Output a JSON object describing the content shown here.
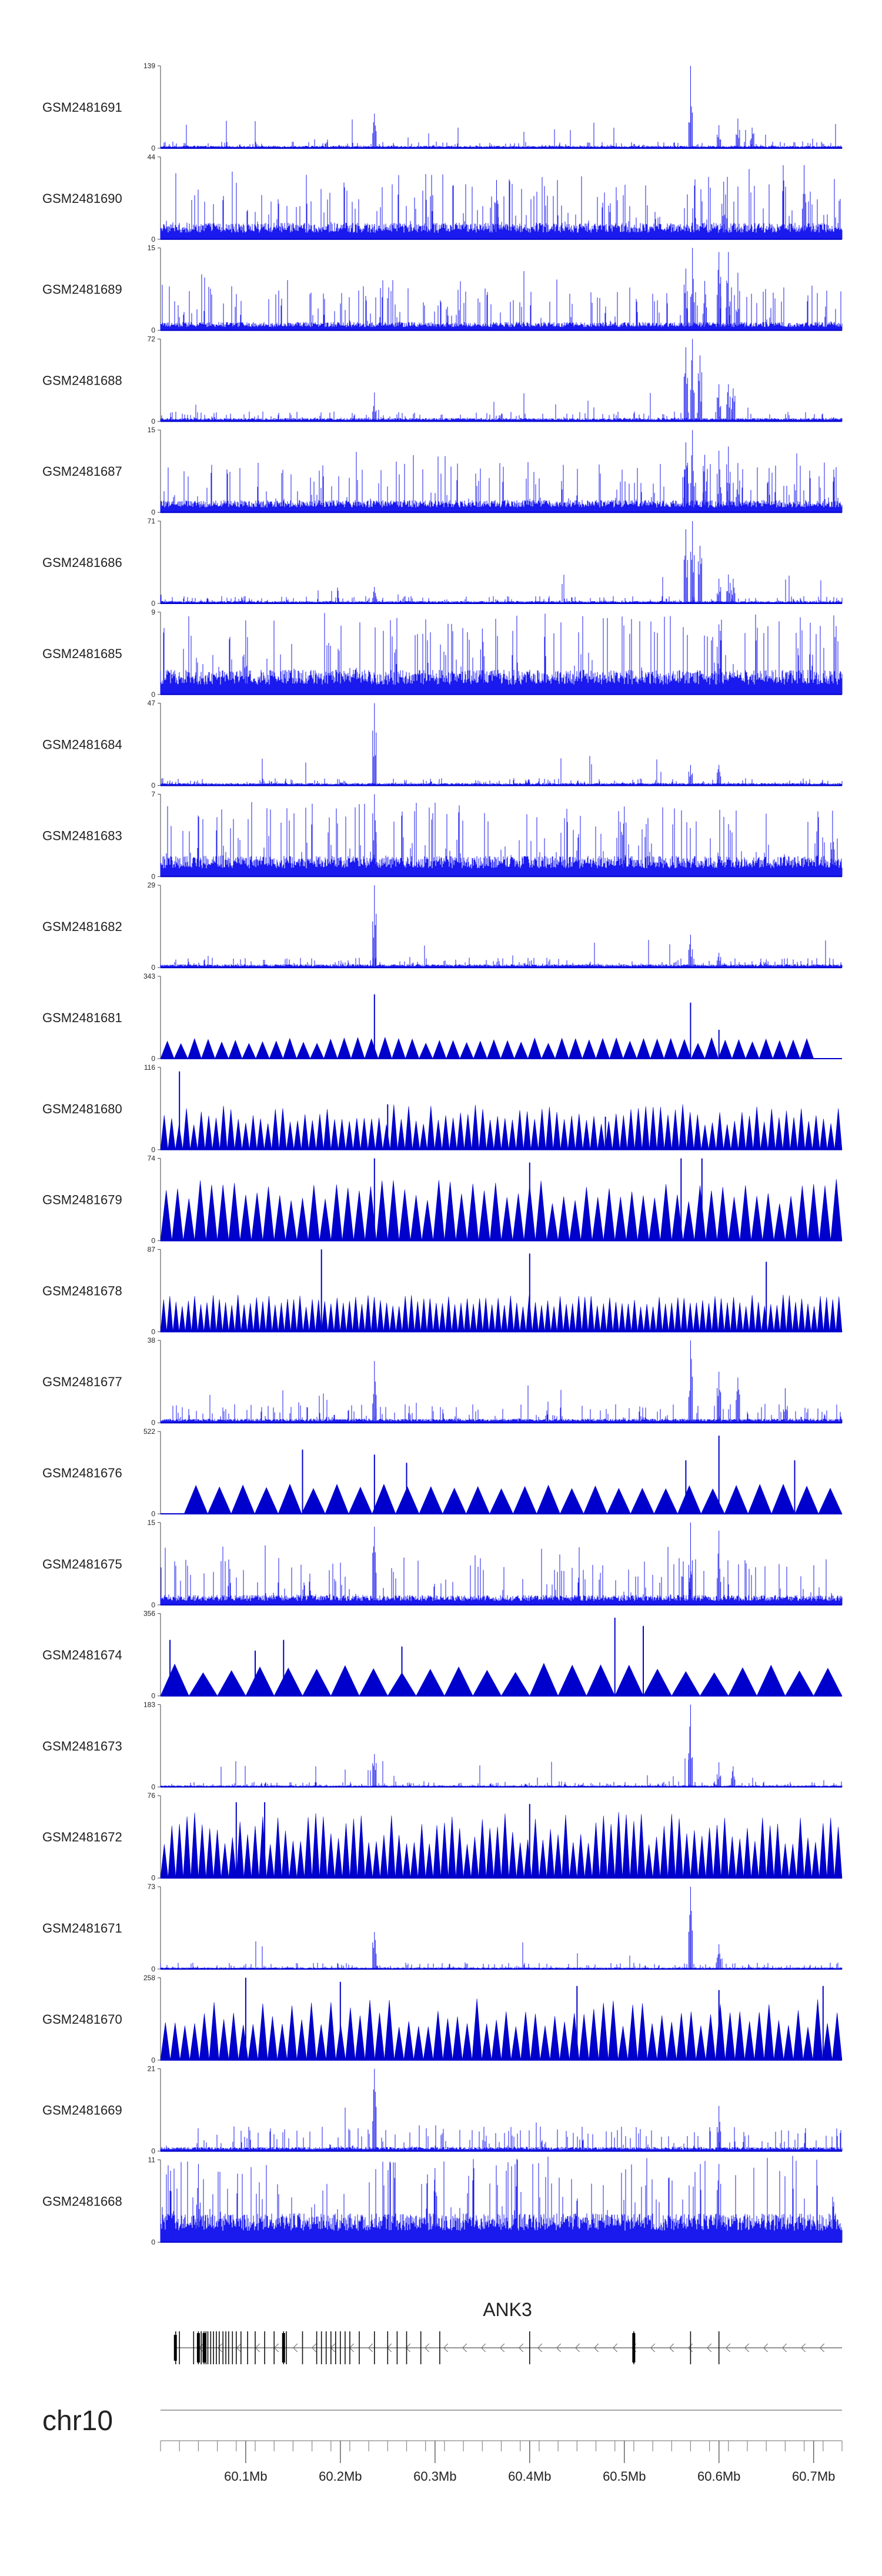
{
  "chart_data": {
    "type": "area",
    "chromosome": "chr10",
    "x_range_mb": [
      60.01,
      60.73
    ],
    "x_ticks": [
      {
        "value": 60.1,
        "label": "60.1Mb"
      },
      {
        "value": 60.2,
        "label": "60.2Mb"
      },
      {
        "value": 60.3,
        "label": "60.3Mb"
      },
      {
        "value": 60.4,
        "label": "60.4Mb"
      },
      {
        "value": 60.5,
        "label": "60.5Mb"
      },
      {
        "value": 60.6,
        "label": "60.6Mb"
      },
      {
        "value": 60.7,
        "label": "60.7Mb"
      }
    ],
    "color": "#0000cc",
    "sparse_color": "#1a1aee",
    "tracks": [
      {
        "name": "GSM2481691",
        "ymax": 139,
        "ymin": 0,
        "style": "dense",
        "baseline": 0.03,
        "noise": 0.05,
        "peaks": [
          [
            60.236,
            0.42
          ],
          [
            60.57,
            1.0
          ],
          [
            60.6,
            0.28
          ],
          [
            60.62,
            0.36
          ],
          [
            60.635,
            0.25
          ]
        ]
      },
      {
        "name": "GSM2481690",
        "ymax": 44,
        "ymin": 0,
        "style": "dense",
        "baseline": 0.2,
        "noise": 0.6,
        "peaks": [
          [
            60.69,
            0.9
          ],
          [
            60.605,
            0.7
          ],
          [
            60.365,
            0.72
          ]
        ]
      },
      {
        "name": "GSM2481689",
        "ymax": 15,
        "ymin": 0,
        "style": "dense",
        "baseline": 0.1,
        "noise": 0.45,
        "peaks": [
          [
            60.565,
            0.75
          ],
          [
            60.572,
            1.0
          ],
          [
            60.585,
            0.6
          ],
          [
            60.6,
            0.95
          ],
          [
            60.61,
            0.95
          ],
          [
            60.62,
            0.7
          ]
        ]
      },
      {
        "name": "GSM2481688",
        "ymax": 72,
        "ymin": 0,
        "style": "dense",
        "baseline": 0.04,
        "noise": 0.08,
        "peaks": [
          [
            60.236,
            0.35
          ],
          [
            60.565,
            0.9
          ],
          [
            60.572,
            1.0
          ],
          [
            60.58,
            0.8
          ],
          [
            60.6,
            0.45
          ],
          [
            60.61,
            0.45
          ],
          [
            60.615,
            0.4
          ]
        ]
      },
      {
        "name": "GSM2481687",
        "ymax": 15,
        "ymin": 0,
        "style": "dense",
        "baseline": 0.15,
        "noise": 0.45,
        "peaks": [
          [
            60.565,
            0.85
          ],
          [
            60.572,
            1.0
          ],
          [
            60.585,
            0.7
          ],
          [
            60.6,
            0.75
          ],
          [
            60.61,
            0.8
          ],
          [
            60.62,
            0.6
          ]
        ]
      },
      {
        "name": "GSM2481686",
        "ymax": 71,
        "ymin": 0,
        "style": "dense",
        "baseline": 0.03,
        "noise": 0.06,
        "peaks": [
          [
            60.236,
            0.2
          ],
          [
            60.565,
            0.9
          ],
          [
            60.572,
            1.0
          ],
          [
            60.58,
            0.7
          ],
          [
            60.6,
            0.3
          ],
          [
            60.61,
            0.35
          ],
          [
            60.615,
            0.3
          ]
        ]
      },
      {
        "name": "GSM2481685",
        "ymax": 9,
        "ymin": 0,
        "style": "dense",
        "baseline": 0.3,
        "noise": 0.7,
        "peaks": [
          [
            60.1,
            0.9
          ],
          [
            60.35,
            0.8
          ],
          [
            60.6,
            0.85
          ]
        ]
      },
      {
        "name": "GSM2481684",
        "ymax": 47,
        "ymin": 0,
        "style": "dense",
        "baseline": 0.03,
        "noise": 0.06,
        "peaks": [
          [
            60.236,
            1.0
          ],
          [
            60.57,
            0.25
          ],
          [
            60.6,
            0.25
          ]
        ]
      },
      {
        "name": "GSM2481683",
        "ymax": 7,
        "ymin": 0,
        "style": "dense",
        "baseline": 0.25,
        "noise": 0.65,
        "peaks": [
          [
            60.236,
            1.0
          ],
          [
            60.5,
            0.85
          ],
          [
            60.72,
            0.8
          ]
        ]
      },
      {
        "name": "GSM2481682",
        "ymax": 29,
        "ymin": 0,
        "style": "dense",
        "baseline": 0.04,
        "noise": 0.08,
        "peaks": [
          [
            60.236,
            1.0
          ],
          [
            60.57,
            0.4
          ],
          [
            60.6,
            0.18
          ],
          [
            60.65,
            0.1
          ]
        ]
      },
      {
        "name": "GSM2481681",
        "ymax": 343,
        "ymin": 0,
        "style": "sparse",
        "xstart": 60.01,
        "xend": 60.7,
        "count": 48,
        "minh": 0.18,
        "maxh": 0.26,
        "peaks": [
          [
            60.236,
            0.78
          ],
          [
            60.57,
            0.68
          ],
          [
            60.6,
            0.35
          ]
        ]
      },
      {
        "name": "GSM2481680",
        "ymax": 116,
        "ymin": 0,
        "style": "sparse",
        "xstart": 60.01,
        "xend": 60.73,
        "count": 92,
        "minh": 0.3,
        "maxh": 0.55,
        "peaks": [
          [
            60.03,
            0.95
          ],
          [
            60.25,
            0.55
          ],
          [
            60.48,
            0.4
          ]
        ]
      },
      {
        "name": "GSM2481679",
        "ymax": 74,
        "ymin": 0,
        "style": "sparse",
        "xstart": 60.01,
        "xend": 60.73,
        "count": 60,
        "minh": 0.45,
        "maxh": 0.75,
        "peaks": [
          [
            60.236,
            1.0
          ],
          [
            60.56,
            1.0
          ],
          [
            60.582,
            1.0
          ],
          [
            60.4,
            0.95
          ]
        ]
      },
      {
        "name": "GSM2481678",
        "ymax": 87,
        "ymin": 0,
        "style": "sparse",
        "xstart": 60.01,
        "xend": 60.73,
        "count": 110,
        "minh": 0.3,
        "maxh": 0.45,
        "peaks": [
          [
            60.18,
            1.0
          ],
          [
            60.4,
            0.95
          ],
          [
            60.65,
            0.85
          ]
        ]
      },
      {
        "name": "GSM2481677",
        "ymax": 38,
        "ymin": 0,
        "style": "dense",
        "baseline": 0.05,
        "noise": 0.18,
        "peaks": [
          [
            60.236,
            0.75
          ],
          [
            60.57,
            1.0
          ],
          [
            60.6,
            0.62
          ],
          [
            60.62,
            0.55
          ],
          [
            60.67,
            0.42
          ]
        ]
      },
      {
        "name": "GSM2481676",
        "ymax": 522,
        "ymin": 0,
        "style": "sparse",
        "xstart": 60.035,
        "xend": 60.73,
        "count": 28,
        "minh": 0.3,
        "maxh": 0.36,
        "peaks": [
          [
            60.16,
            0.78
          ],
          [
            60.236,
            0.72
          ],
          [
            60.27,
            0.62
          ],
          [
            60.565,
            0.65
          ],
          [
            60.6,
            0.95
          ],
          [
            60.68,
            0.65
          ]
        ]
      },
      {
        "name": "GSM2481675",
        "ymax": 15,
        "ymin": 0,
        "style": "dense",
        "baseline": 0.12,
        "noise": 0.45,
        "peaks": [
          [
            60.236,
            0.95
          ],
          [
            60.57,
            1.0
          ],
          [
            60.6,
            0.9
          ]
        ]
      },
      {
        "name": "GSM2481674",
        "ymax": 356,
        "ymin": 0,
        "style": "sparse",
        "xstart": 60.01,
        "xend": 60.73,
        "count": 24,
        "minh": 0.28,
        "maxh": 0.4,
        "peaks": [
          [
            60.02,
            0.68
          ],
          [
            60.11,
            0.55
          ],
          [
            60.14,
            0.68
          ],
          [
            60.265,
            0.6
          ],
          [
            60.49,
            0.95
          ],
          [
            60.52,
            0.85
          ]
        ]
      },
      {
        "name": "GSM2481673",
        "ymax": 183,
        "ymin": 0,
        "style": "dense",
        "baseline": 0.02,
        "noise": 0.05,
        "peaks": [
          [
            60.236,
            0.4
          ],
          [
            60.57,
            1.0
          ],
          [
            60.6,
            0.3
          ],
          [
            60.615,
            0.25
          ]
        ]
      },
      {
        "name": "GSM2481672",
        "ymax": 76,
        "ymin": 0,
        "style": "sparse",
        "xstart": 60.01,
        "xend": 60.73,
        "count": 90,
        "minh": 0.4,
        "maxh": 0.8,
        "peaks": [
          [
            60.09,
            0.92
          ],
          [
            60.12,
            0.92
          ],
          [
            60.4,
            0.9
          ]
        ]
      },
      {
        "name": "GSM2481671",
        "ymax": 73,
        "ymin": 0,
        "style": "dense",
        "baseline": 0.02,
        "noise": 0.06,
        "peaks": [
          [
            60.236,
            0.45
          ],
          [
            60.57,
            1.0
          ],
          [
            60.6,
            0.3
          ]
        ]
      },
      {
        "name": "GSM2481670",
        "ymax": 258,
        "ymin": 0,
        "style": "sparse",
        "xstart": 60.01,
        "xend": 60.73,
        "count": 70,
        "minh": 0.4,
        "maxh": 0.75,
        "peaks": [
          [
            60.1,
            1.0
          ],
          [
            60.2,
            0.95
          ],
          [
            60.45,
            0.9
          ],
          [
            60.6,
            0.85
          ],
          [
            60.71,
            0.9
          ]
        ]
      },
      {
        "name": "GSM2481669",
        "ymax": 21,
        "ymin": 0,
        "style": "dense",
        "baseline": 0.05,
        "noise": 0.25,
        "peaks": [
          [
            60.236,
            1.0
          ],
          [
            60.6,
            0.55
          ]
        ]
      },
      {
        "name": "GSM2481668",
        "ymax": 11,
        "ymin": 0,
        "style": "dense",
        "baseline": 0.35,
        "noise": 0.7,
        "peaks": [
          [
            60.05,
            0.95
          ],
          [
            60.3,
            0.9
          ],
          [
            60.6,
            0.95
          ]
        ]
      }
    ],
    "gene": {
      "name": "ANK3",
      "strand": "-",
      "start_mb": 60.026,
      "end_mb": 60.73,
      "exons_mb": [
        60.026,
        60.03,
        60.045,
        60.05,
        60.053,
        60.056,
        60.058,
        60.06,
        60.063,
        60.066,
        60.069,
        60.072,
        60.076,
        60.079,
        60.082,
        60.086,
        60.09,
        60.095,
        60.102,
        60.11,
        60.12,
        60.13,
        60.14,
        60.143,
        60.16,
        60.175,
        60.18,
        60.185,
        60.19,
        60.195,
        60.2,
        60.205,
        60.21,
        60.22,
        60.236,
        60.25,
        60.26,
        60.27,
        60.285,
        60.305,
        60.4,
        60.51,
        60.57,
        60.6
      ]
    }
  }
}
